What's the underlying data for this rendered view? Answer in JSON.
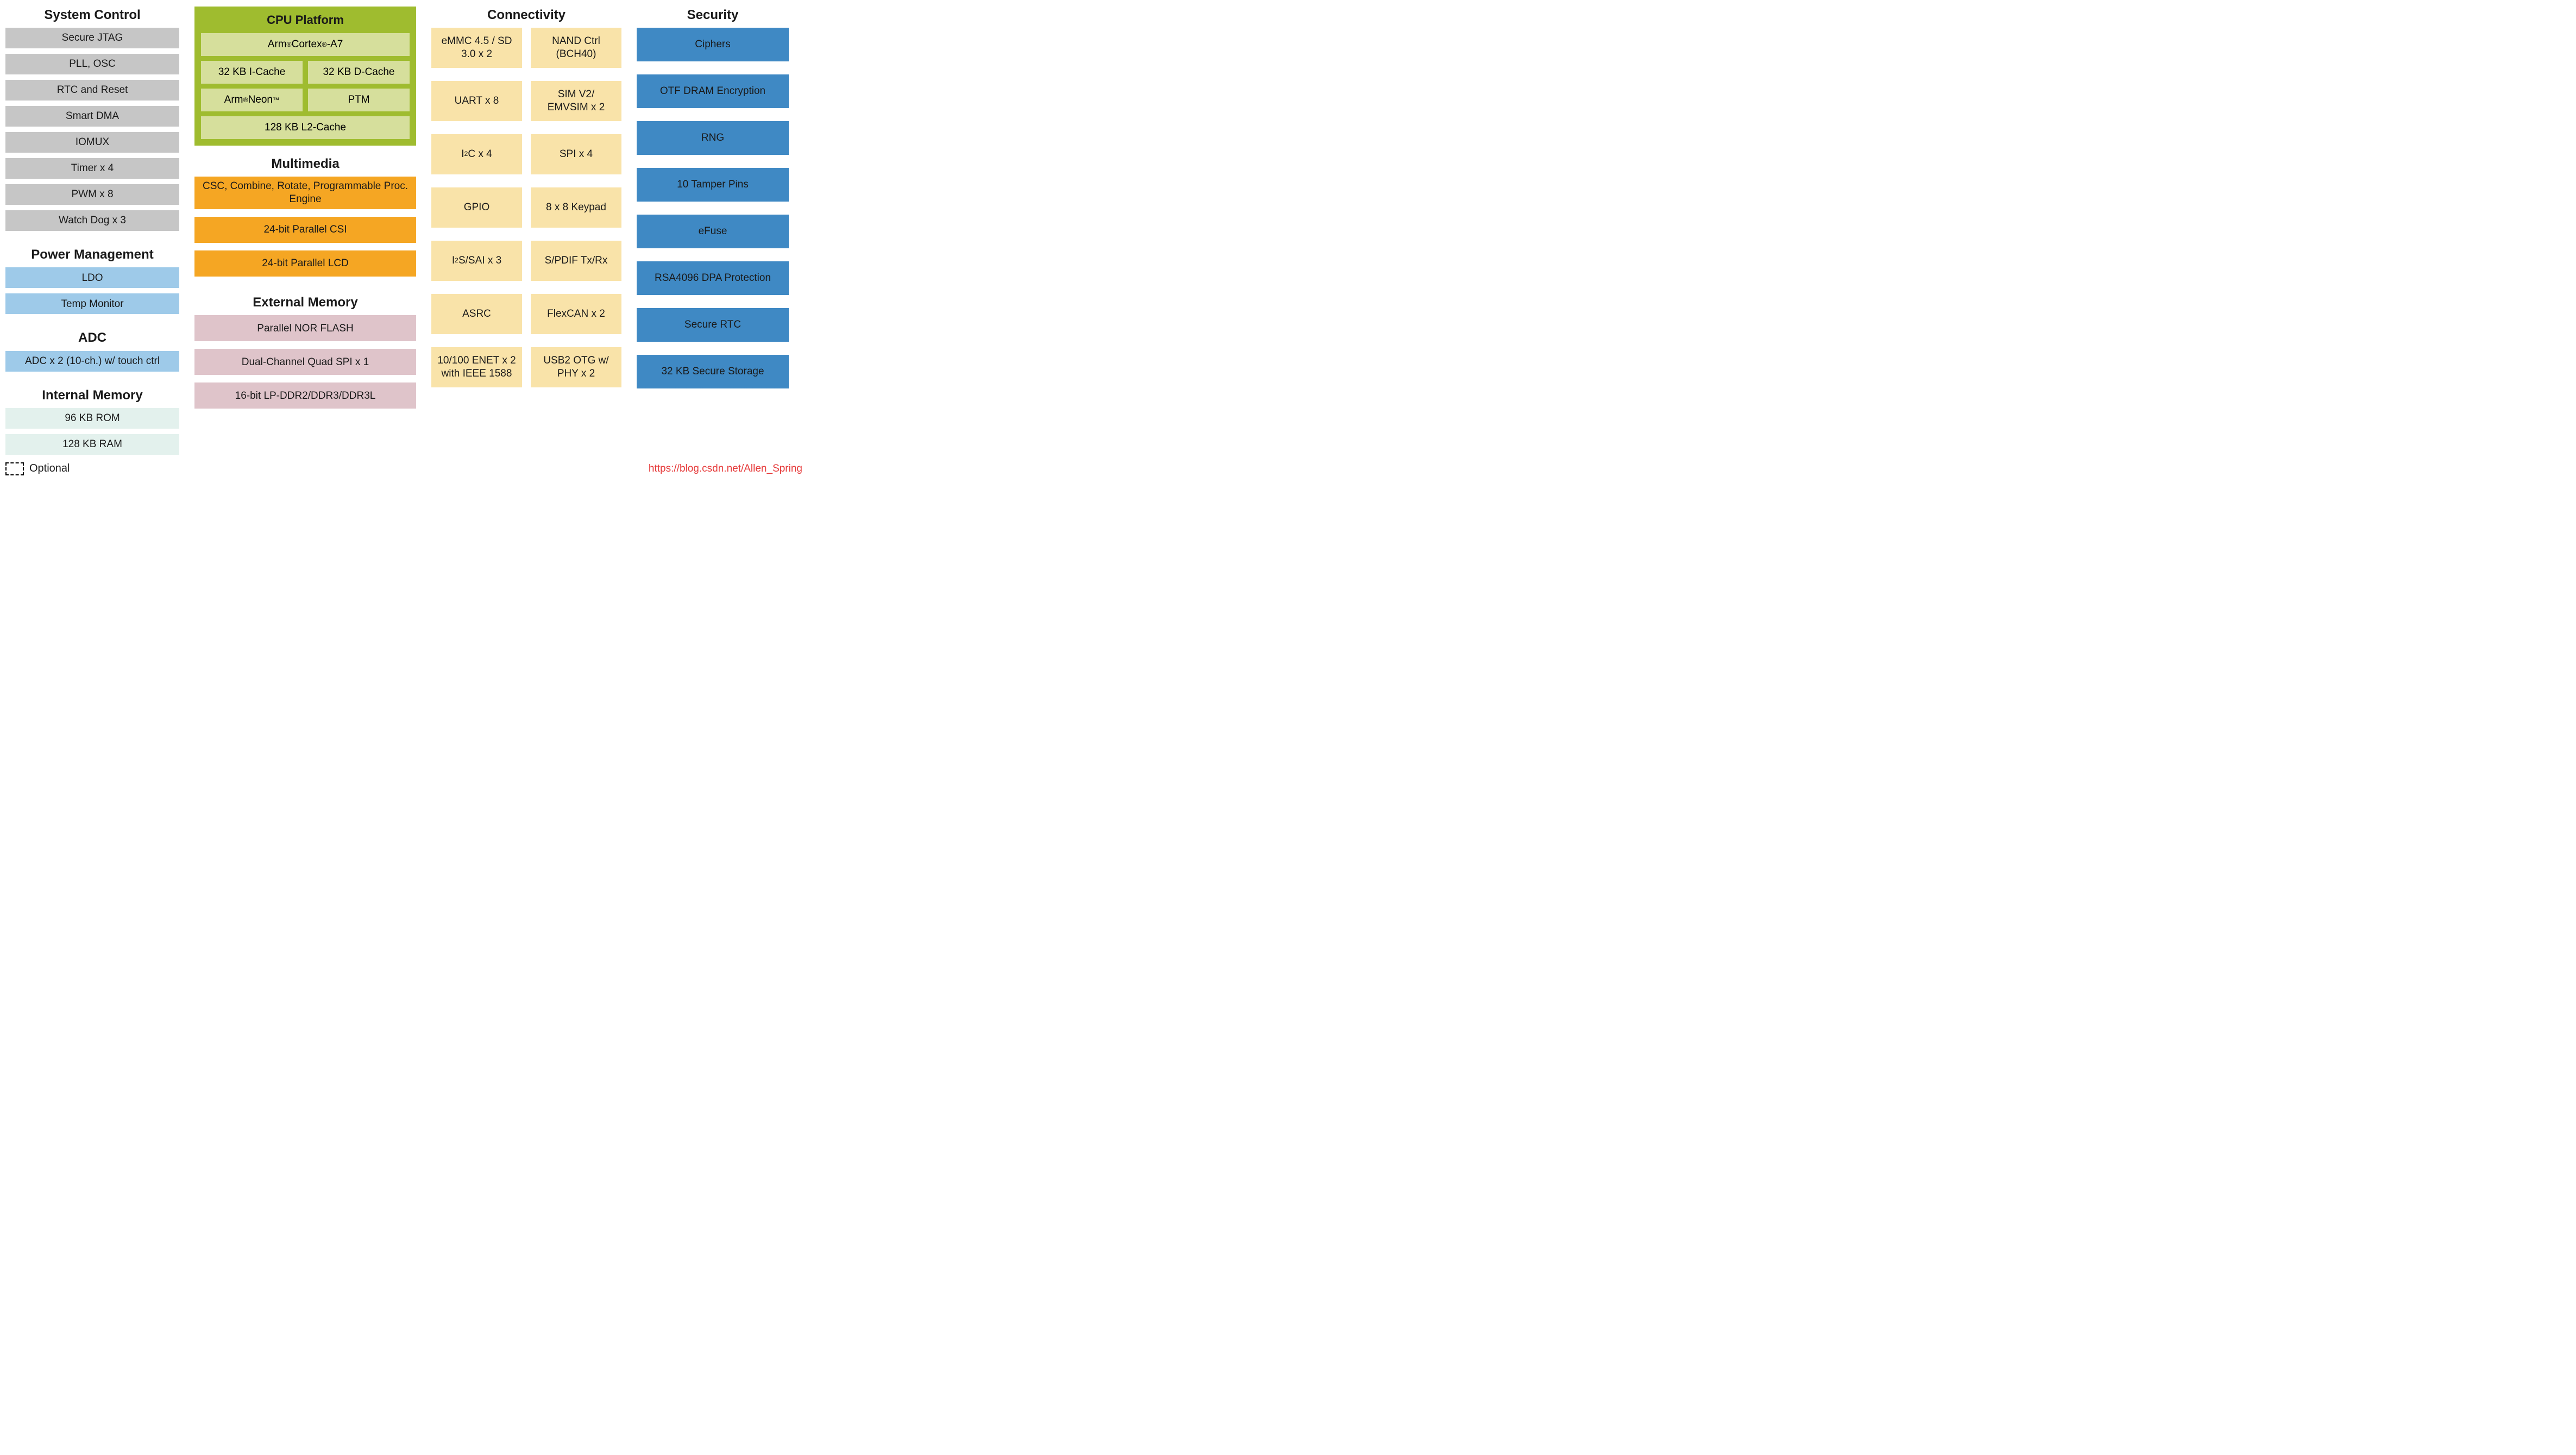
{
  "type": "block-diagram",
  "legend": {
    "swatch_style": "dashed",
    "label": "Optional"
  },
  "watermark": {
    "text": "https://blog.csdn.net/Allen_Spring",
    "color": "#e63a3a"
  },
  "colors": {
    "background": "#ffffff",
    "gray": "#c6c6c6",
    "lblue": "#9ecae9",
    "mint": "#e3f1ed",
    "cpu_outer": "#9fbc2f",
    "cpu_inner": "#d6df9c",
    "orange": "#f5a623",
    "pink": "#dfc4ca",
    "cream": "#f9e3a9",
    "blue": "#3f89c4",
    "text": "#1a1a1a",
    "dashed_border": "#000000"
  },
  "typography": {
    "font_family": "Arial",
    "section_title_pt": 18,
    "block_pt": 14,
    "title_weight": "bold"
  },
  "columns": {
    "system_control": {
      "title": "System Control",
      "items": [
        {
          "label": "Secure JTAG",
          "color": "gray",
          "style": "solid"
        },
        {
          "label": "PLL, OSC",
          "color": "gray",
          "style": "solid"
        },
        {
          "label": "RTC and Reset",
          "color": "gray",
          "style": "solid"
        },
        {
          "label": "Smart DMA",
          "color": "gray",
          "style": "solid"
        },
        {
          "label": "IOMUX",
          "color": "gray",
          "style": "solid"
        },
        {
          "label": "Timer x 4",
          "color": "gray",
          "style": "solid"
        },
        {
          "label": "PWM x 8",
          "color": "gray",
          "style": "solid"
        },
        {
          "label": "Watch Dog x 3",
          "color": "gray",
          "style": "solid"
        }
      ]
    },
    "power_management": {
      "title": "Power Management",
      "items": [
        {
          "label": "LDO",
          "color": "lblue",
          "style": "solid"
        },
        {
          "label": "Temp Monitor",
          "color": "lblue",
          "style": "solid"
        }
      ]
    },
    "adc": {
      "title": "ADC",
      "items": [
        {
          "label": "ADC x 2 (10-ch.) w/ touch ctrl",
          "color": "lblue",
          "style": "dashed"
        }
      ]
    },
    "internal_memory": {
      "title": "Internal Memory",
      "items": [
        {
          "label": "96 KB ROM",
          "color": "mint",
          "style": "solid"
        },
        {
          "label": "128 KB RAM",
          "color": "mint",
          "style": "solid"
        }
      ]
    },
    "cpu_platform": {
      "title": "CPU Platform",
      "rows": [
        [
          {
            "label_html": "Arm<sup>®</sup> Cortex<sup>®</sup>-A7"
          }
        ],
        [
          {
            "label": "32 KB I-Cache"
          },
          {
            "label": "32 KB D-Cache"
          }
        ],
        [
          {
            "label_html": "Arm<sup>®</sup> Neon<sup>™</sup>"
          },
          {
            "label": "PTM"
          }
        ],
        [
          {
            "label": "128 KB L2-Cache"
          }
        ]
      ]
    },
    "multimedia": {
      "title": "Multimedia",
      "items": [
        {
          "label": "CSC, Combine, Rotate, Programmable Proc. Engine",
          "color": "orange",
          "style": "dashed",
          "tall": true
        },
        {
          "label": "24-bit Parallel CSI",
          "color": "orange",
          "style": "dashed"
        },
        {
          "label": "24-bit Parallel LCD",
          "color": "orange",
          "style": "solid"
        }
      ]
    },
    "external_memory": {
      "title": "External Memory",
      "items": [
        {
          "label": "Parallel NOR FLASH",
          "color": "pink",
          "style": "solid"
        },
        {
          "label": "Dual-Channel Quad SPI  x 1",
          "color": "pink",
          "style": "solid"
        },
        {
          "label": "16-bit LP-DDR2/DDR3/DDR3L",
          "color": "pink",
          "style": "solid"
        }
      ]
    },
    "connectivity": {
      "title": "Connectivity",
      "rows": [
        [
          {
            "label": "eMMC 4.5 / SD 3.0 x 2",
            "style": "solid"
          },
          {
            "label": "NAND Ctrl (BCH40)",
            "style": "solid"
          }
        ],
        [
          {
            "label": "UART x 8",
            "style": "solid"
          },
          {
            "label": "SIM V2/ EMVSIM x 2",
            "style": "dashed"
          }
        ],
        [
          {
            "label_html": "I<sup>2</sup>C x 4",
            "style": "solid"
          },
          {
            "label": "SPI  x 4",
            "style": "solid"
          }
        ],
        [
          {
            "label": "GPIO",
            "style": "solid"
          },
          {
            "label": "8 x 8 Keypad",
            "style": "solid"
          }
        ],
        [
          {
            "label_html": "I<sup>2</sup>S/SAI x 3",
            "style": "solid"
          },
          {
            "label": "S/PDIF Tx/Rx",
            "style": "solid"
          }
        ],
        [
          {
            "label": "ASRC",
            "style": "solid"
          },
          {
            "label": "FlexCAN x 2",
            "style": "dashed"
          }
        ],
        [
          {
            "label": "10/100 ENET x 2 with IEEE 1588",
            "style": "dashed"
          },
          {
            "label": "USB2 OTG w/ PHY x 2",
            "style": "solid"
          }
        ]
      ]
    },
    "security": {
      "title": "Security",
      "items": [
        {
          "label": "Ciphers",
          "style": "solid"
        },
        {
          "label": "OTF DRAM Encryption",
          "style": "dashed"
        },
        {
          "label": "RNG",
          "style": "solid"
        },
        {
          "label": "10 Tamper Pins",
          "style": "dashed"
        },
        {
          "label": "eFuse",
          "style": "solid"
        },
        {
          "label": "RSA4096 DPA Protection",
          "style": "dashed"
        },
        {
          "label": "Secure RTC",
          "style": "solid"
        },
        {
          "label": "32 KB Secure Storage",
          "style": "dashed"
        }
      ]
    }
  }
}
